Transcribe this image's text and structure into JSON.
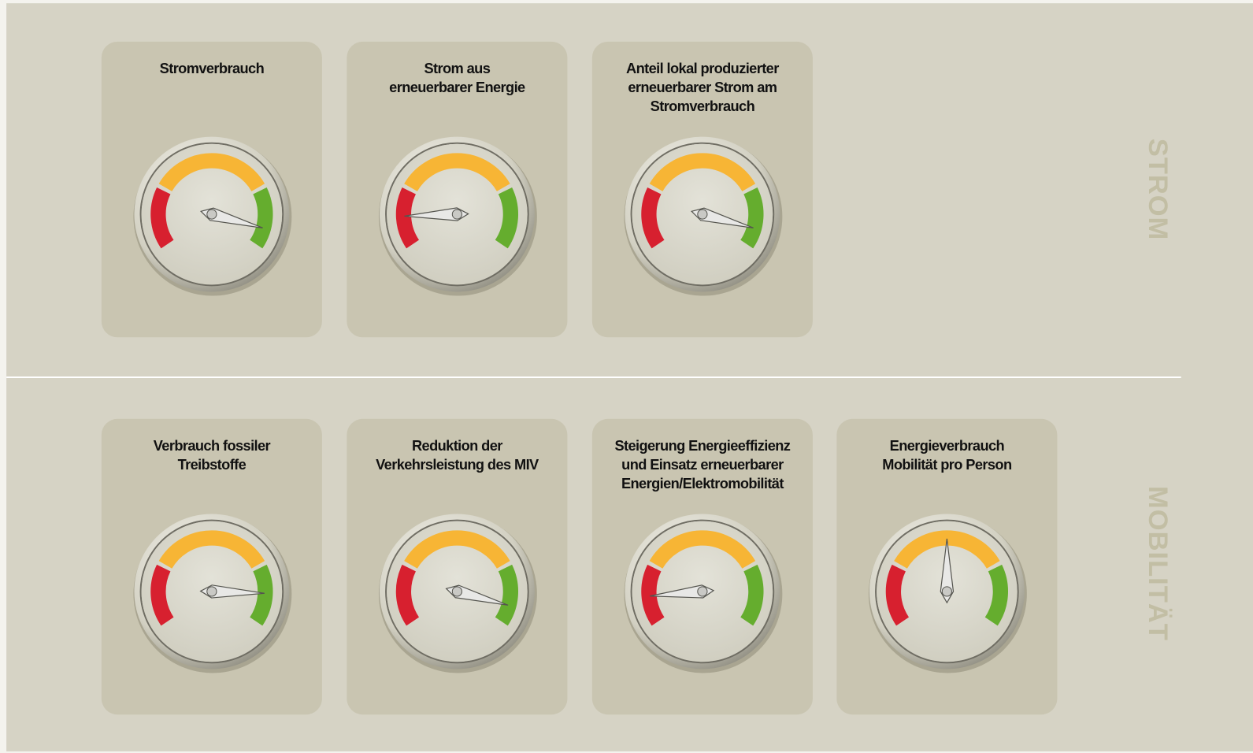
{
  "sections": [
    {
      "label": "STROM",
      "gauges": [
        {
          "title": [
            "Stromverbrauch"
          ],
          "needle_angle": 105
        },
        {
          "title": [
            "Strom aus",
            "erneuerbarer Energie"
          ],
          "needle_angle": -92
        },
        {
          "title": [
            "Anteil lokal produzierter",
            "erneuerbarer Strom am",
            "Stromverbrauch"
          ],
          "needle_angle": 105
        }
      ]
    },
    {
      "label": "MOBILITÄT",
      "gauges": [
        {
          "title": [
            "Verbrauch fossiler",
            "Treibstoffe"
          ],
          "needle_angle": 92
        },
        {
          "title": [
            "Reduktion der",
            "Verkehrsleistung des MIV"
          ],
          "needle_angle": 105
        },
        {
          "title": [
            "Steigerung Energieeffizienz",
            "und Einsatz erneuerbarer",
            "Energien/Elektromobilität"
          ],
          "needle_angle": -95
        },
        {
          "title": [
            "Energieverbrauch",
            "Mobilität pro Person"
          ],
          "needle_angle": 0
        }
      ]
    }
  ]
}
